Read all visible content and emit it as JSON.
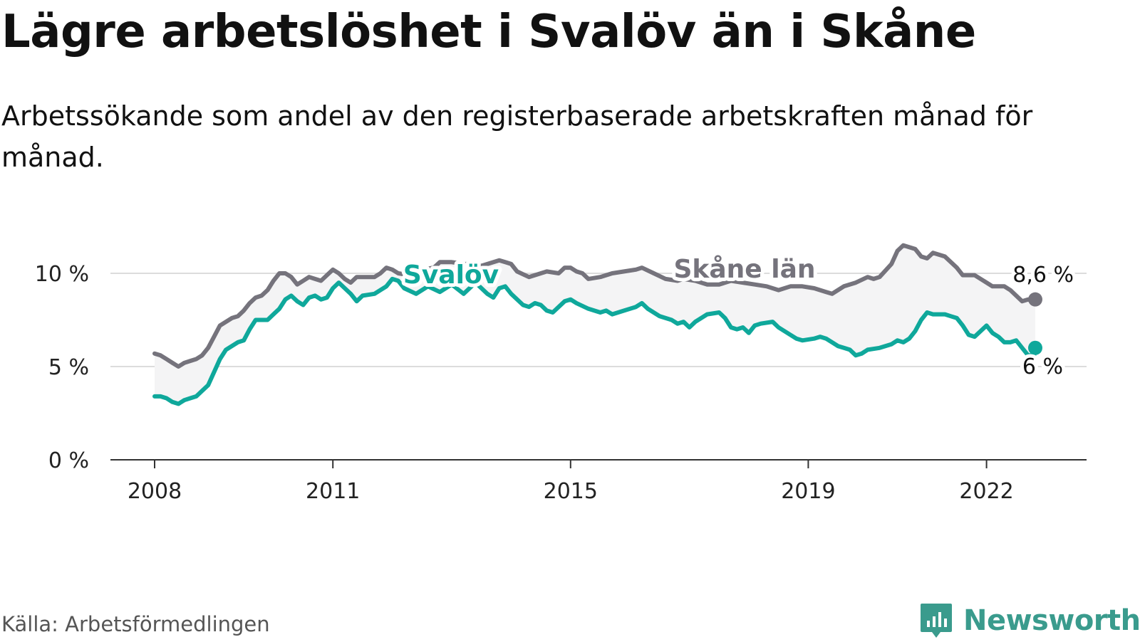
{
  "title": "Lägre arbetslöshet i Svalöv än i Skåne",
  "subtitle": "Arbetssökande som andel av den registerbaserade arbetskraften månad för månad.",
  "source": "Källa: Arbetsförmedlingen",
  "brand": "Newsworthy",
  "colors": {
    "skane": "#75737c",
    "svalov": "#0fa89b",
    "band": "#f4f4f5",
    "grid": "#dcdcdc",
    "axis": "#333333",
    "brand": "#3a9b8d"
  },
  "chart_data": {
    "type": "line",
    "title": "Lägre arbetslöshet i Svalöv än i Skåne",
    "xlabel": "",
    "ylabel": "",
    "ylim": [
      0,
      10
    ],
    "xlim": [
      2008.0,
      2022.82
    ],
    "yticks": [
      0,
      5,
      10
    ],
    "ytick_labels": [
      "0 %",
      "5 %",
      "10 %"
    ],
    "xticks": [
      2008,
      2011,
      2015,
      2019,
      2022
    ],
    "xtick_labels": [
      "2008",
      "2011",
      "2015",
      "2019",
      "2022"
    ],
    "grid": true,
    "legend": "inline labels",
    "series": [
      {
        "name": "Skåne län",
        "end_label": "8,6 %",
        "points": [
          [
            2008.0,
            5.7
          ],
          [
            2008.1,
            5.6
          ],
          [
            2008.2,
            5.4
          ],
          [
            2008.3,
            5.2
          ],
          [
            2008.4,
            5.0
          ],
          [
            2008.5,
            5.2
          ],
          [
            2008.6,
            5.3
          ],
          [
            2008.7,
            5.4
          ],
          [
            2008.8,
            5.6
          ],
          [
            2008.9,
            6.0
          ],
          [
            2009.0,
            6.6
          ],
          [
            2009.1,
            7.2
          ],
          [
            2009.3,
            7.6
          ],
          [
            2009.4,
            7.7
          ],
          [
            2009.5,
            8.0
          ],
          [
            2009.6,
            8.4
          ],
          [
            2009.7,
            8.7
          ],
          [
            2009.8,
            8.8
          ],
          [
            2009.9,
            9.1
          ],
          [
            2010.0,
            9.6
          ],
          [
            2010.1,
            10.0
          ],
          [
            2010.2,
            10.0
          ],
          [
            2010.3,
            9.8
          ],
          [
            2010.4,
            9.4
          ],
          [
            2010.5,
            9.6
          ],
          [
            2010.6,
            9.8
          ],
          [
            2010.7,
            9.7
          ],
          [
            2010.8,
            9.6
          ],
          [
            2011.0,
            10.2
          ],
          [
            2011.1,
            10.0
          ],
          [
            2011.2,
            9.7
          ],
          [
            2011.3,
            9.5
          ],
          [
            2011.4,
            9.8
          ],
          [
            2011.6,
            9.8
          ],
          [
            2011.7,
            9.8
          ],
          [
            2011.8,
            10.0
          ],
          [
            2011.9,
            10.3
          ],
          [
            2012.0,
            10.2
          ],
          [
            2012.1,
            10.0
          ],
          [
            2012.3,
            9.9
          ],
          [
            2012.5,
            10.2
          ],
          [
            2012.7,
            10.3
          ],
          [
            2012.8,
            10.6
          ],
          [
            2013.0,
            10.6
          ],
          [
            2013.2,
            10.5
          ],
          [
            2013.3,
            10.5
          ],
          [
            2013.5,
            10.4
          ],
          [
            2013.8,
            10.7
          ],
          [
            2013.9,
            10.6
          ],
          [
            2014.0,
            10.5
          ],
          [
            2014.1,
            10.1
          ],
          [
            2014.3,
            9.8
          ],
          [
            2014.5,
            10.0
          ],
          [
            2014.6,
            10.1
          ],
          [
            2014.8,
            10.0
          ],
          [
            2014.9,
            10.3
          ],
          [
            2015.0,
            10.3
          ],
          [
            2015.1,
            10.1
          ],
          [
            2015.2,
            10.0
          ],
          [
            2015.3,
            9.7
          ],
          [
            2015.5,
            9.8
          ],
          [
            2015.7,
            10.0
          ],
          [
            2015.9,
            10.1
          ],
          [
            2016.1,
            10.2
          ],
          [
            2016.2,
            10.3
          ],
          [
            2016.4,
            10.0
          ],
          [
            2016.6,
            9.7
          ],
          [
            2016.8,
            9.6
          ],
          [
            2016.9,
            9.7
          ],
          [
            2017.1,
            9.6
          ],
          [
            2017.3,
            9.4
          ],
          [
            2017.5,
            9.4
          ],
          [
            2017.7,
            9.6
          ],
          [
            2017.9,
            9.5
          ],
          [
            2018.1,
            9.4
          ],
          [
            2018.3,
            9.3
          ],
          [
            2018.5,
            9.1
          ],
          [
            2018.7,
            9.3
          ],
          [
            2018.9,
            9.3
          ],
          [
            2019.1,
            9.2
          ],
          [
            2019.3,
            9.0
          ],
          [
            2019.4,
            8.9
          ],
          [
            2019.6,
            9.3
          ],
          [
            2019.8,
            9.5
          ],
          [
            2020.0,
            9.8
          ],
          [
            2020.1,
            9.7
          ],
          [
            2020.2,
            9.8
          ],
          [
            2020.4,
            10.5
          ],
          [
            2020.5,
            11.2
          ],
          [
            2020.6,
            11.5
          ],
          [
            2020.8,
            11.3
          ],
          [
            2020.9,
            10.9
          ],
          [
            2021.0,
            10.8
          ],
          [
            2021.1,
            11.1
          ],
          [
            2021.3,
            10.9
          ],
          [
            2021.4,
            10.6
          ],
          [
            2021.5,
            10.3
          ],
          [
            2021.6,
            9.9
          ],
          [
            2021.8,
            9.9
          ],
          [
            2021.9,
            9.7
          ],
          [
            2022.0,
            9.5
          ],
          [
            2022.1,
            9.3
          ],
          [
            2022.3,
            9.3
          ],
          [
            2022.4,
            9.1
          ],
          [
            2022.5,
            8.8
          ],
          [
            2022.6,
            8.5
          ],
          [
            2022.7,
            8.6
          ],
          [
            2022.8,
            8.5
          ],
          [
            2022.9,
            8.4
          ],
          [
            2023.0,
            8.5
          ],
          [
            2022.82,
            8.6
          ]
        ]
      },
      {
        "name": "Svalöv",
        "end_label": "6 %",
        "points": [
          [
            2008.0,
            3.4
          ],
          [
            2008.1,
            3.4
          ],
          [
            2008.2,
            3.3
          ],
          [
            2008.3,
            3.1
          ],
          [
            2008.4,
            3.0
          ],
          [
            2008.5,
            3.2
          ],
          [
            2008.6,
            3.3
          ],
          [
            2008.7,
            3.4
          ],
          [
            2008.8,
            3.7
          ],
          [
            2008.9,
            4.0
          ],
          [
            2009.0,
            4.7
          ],
          [
            2009.1,
            5.4
          ],
          [
            2009.2,
            5.9
          ],
          [
            2009.4,
            6.3
          ],
          [
            2009.5,
            6.4
          ],
          [
            2009.6,
            7.0
          ],
          [
            2009.7,
            7.5
          ],
          [
            2009.9,
            7.5
          ],
          [
            2010.0,
            7.8
          ],
          [
            2010.1,
            8.1
          ],
          [
            2010.2,
            8.6
          ],
          [
            2010.3,
            8.8
          ],
          [
            2010.4,
            8.5
          ],
          [
            2010.5,
            8.3
          ],
          [
            2010.6,
            8.7
          ],
          [
            2010.7,
            8.8
          ],
          [
            2010.8,
            8.6
          ],
          [
            2010.9,
            8.7
          ],
          [
            2011.0,
            9.2
          ],
          [
            2011.1,
            9.5
          ],
          [
            2011.2,
            9.2
          ],
          [
            2011.3,
            8.9
          ],
          [
            2011.4,
            8.5
          ],
          [
            2011.5,
            8.8
          ],
          [
            2011.7,
            8.9
          ],
          [
            2011.8,
            9.1
          ],
          [
            2011.9,
            9.3
          ],
          [
            2012.0,
            9.7
          ],
          [
            2012.1,
            9.6
          ],
          [
            2012.2,
            9.2
          ],
          [
            2012.4,
            8.9
          ],
          [
            2012.6,
            9.3
          ],
          [
            2012.8,
            9.0
          ],
          [
            2013.0,
            9.4
          ],
          [
            2013.2,
            8.9
          ],
          [
            2013.4,
            9.5
          ],
          [
            2013.6,
            8.9
          ],
          [
            2013.7,
            8.7
          ],
          [
            2013.8,
            9.2
          ],
          [
            2013.9,
            9.3
          ],
          [
            2014.0,
            8.9
          ],
          [
            2014.2,
            8.3
          ],
          [
            2014.3,
            8.2
          ],
          [
            2014.4,
            8.4
          ],
          [
            2014.5,
            8.3
          ],
          [
            2014.6,
            8.0
          ],
          [
            2014.7,
            7.9
          ],
          [
            2014.8,
            8.2
          ],
          [
            2014.9,
            8.5
          ],
          [
            2015.0,
            8.6
          ],
          [
            2015.1,
            8.4
          ],
          [
            2015.3,
            8.1
          ],
          [
            2015.5,
            7.9
          ],
          [
            2015.6,
            8.0
          ],
          [
            2015.7,
            7.8
          ],
          [
            2015.9,
            8.0
          ],
          [
            2016.1,
            8.2
          ],
          [
            2016.2,
            8.4
          ],
          [
            2016.3,
            8.1
          ],
          [
            2016.5,
            7.7
          ],
          [
            2016.7,
            7.5
          ],
          [
            2016.8,
            7.3
          ],
          [
            2016.9,
            7.4
          ],
          [
            2017.0,
            7.1
          ],
          [
            2017.1,
            7.4
          ],
          [
            2017.3,
            7.8
          ],
          [
            2017.5,
            7.9
          ],
          [
            2017.6,
            7.6
          ],
          [
            2017.7,
            7.1
          ],
          [
            2017.8,
            7.0
          ],
          [
            2017.9,
            7.1
          ],
          [
            2018.0,
            6.8
          ],
          [
            2018.1,
            7.2
          ],
          [
            2018.2,
            7.3
          ],
          [
            2018.4,
            7.4
          ],
          [
            2018.5,
            7.1
          ],
          [
            2018.7,
            6.7
          ],
          [
            2018.8,
            6.5
          ],
          [
            2018.9,
            6.4
          ],
          [
            2019.1,
            6.5
          ],
          [
            2019.2,
            6.6
          ],
          [
            2019.3,
            6.5
          ],
          [
            2019.4,
            6.3
          ],
          [
            2019.5,
            6.1
          ],
          [
            2019.6,
            6.0
          ],
          [
            2019.7,
            5.9
          ],
          [
            2019.8,
            5.6
          ],
          [
            2019.9,
            5.7
          ],
          [
            2020.0,
            5.9
          ],
          [
            2020.2,
            6.0
          ],
          [
            2020.4,
            6.2
          ],
          [
            2020.5,
            6.4
          ],
          [
            2020.6,
            6.3
          ],
          [
            2020.7,
            6.5
          ],
          [
            2020.8,
            6.9
          ],
          [
            2020.9,
            7.5
          ],
          [
            2021.0,
            7.9
          ],
          [
            2021.1,
            7.8
          ],
          [
            2021.3,
            7.8
          ],
          [
            2021.4,
            7.7
          ],
          [
            2021.5,
            7.6
          ],
          [
            2021.6,
            7.2
          ],
          [
            2021.7,
            6.7
          ],
          [
            2021.8,
            6.6
          ],
          [
            2021.9,
            6.9
          ],
          [
            2022.0,
            7.2
          ],
          [
            2022.1,
            6.8
          ],
          [
            2022.2,
            6.6
          ],
          [
            2022.3,
            6.3
          ],
          [
            2022.4,
            6.3
          ],
          [
            2022.5,
            6.4
          ],
          [
            2022.6,
            6.0
          ],
          [
            2022.7,
            5.6
          ],
          [
            2022.8,
            5.6
          ],
          [
            2022.82,
            6.0
          ]
        ]
      }
    ]
  }
}
